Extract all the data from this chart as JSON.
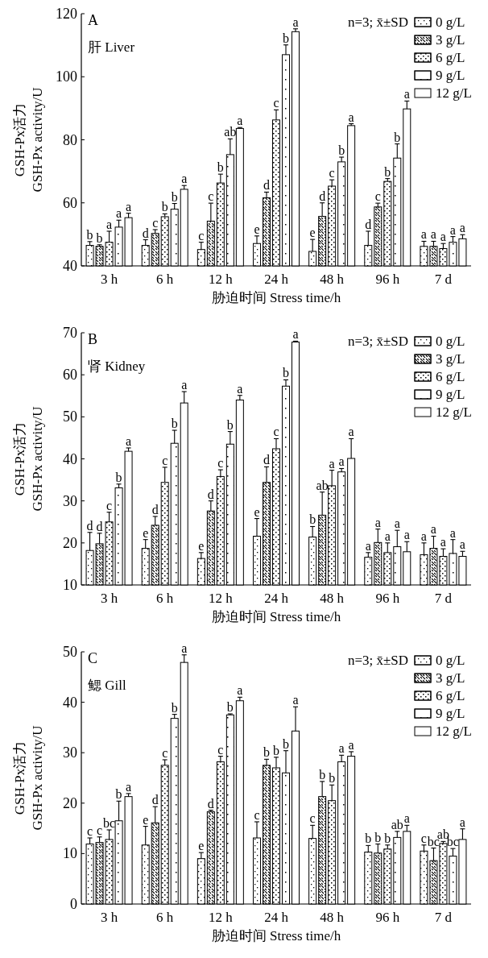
{
  "chart_data": [
    {
      "type": "bar",
      "title": "A",
      "subtitle": "肝 Liver",
      "xlabel": "胁迫时间 Stress time/h",
      "ylabel": "GSH-Px活力\nGSH-Px activity/U",
      "annotations": [
        "n=3; x̄±SD"
      ],
      "legend": "top right",
      "categories": [
        "3 h",
        "6 h",
        "12 h",
        "24 h",
        "48 h",
        "96 h",
        "7 d"
      ],
      "ylim": [
        40,
        120
      ],
      "yticks": [
        40,
        60,
        80,
        100,
        120
      ],
      "series": [
        {
          "name": "0 g/L",
          "color": "#ffffff",
          "values": [
            46.5,
            46.5,
            45.2,
            47.1,
            44.6,
            46.5,
            46.2
          ],
          "errors": [
            1.2,
            1.8,
            2.3,
            2.4,
            3.8,
            4.5,
            1.6
          ],
          "value_labels": [
            "b",
            "d",
            "c",
            "e",
            "e",
            "d",
            "a"
          ]
        },
        {
          "name": "3 g/L",
          "color": "#ffffff",
          "values": [
            46.2,
            50.3,
            54.2,
            61.6,
            55.7,
            58.7,
            46.2
          ],
          "errors": [
            0.5,
            1.2,
            5.7,
            1.8,
            4.3,
            1.2,
            1.6
          ],
          "value_labels": [
            "b",
            "c",
            "c",
            "d",
            "d",
            "c",
            "a"
          ]
        },
        {
          "name": "6 g/L",
          "color": "#ffffff",
          "values": [
            47.5,
            55.6,
            66.3,
            86.3,
            65.3,
            66.8,
            45.5
          ],
          "errors": [
            3.5,
            0.9,
            2.8,
            3.2,
            2.0,
            0.9,
            1.6
          ],
          "value_labels": [
            "a",
            "b",
            "b",
            "c",
            "c",
            "b",
            "a"
          ]
        },
        {
          "name": "9 g/L",
          "color": "#ffffff",
          "values": [
            52.3,
            58.0,
            75.3,
            107.0,
            73.0,
            74.2,
            47.5
          ],
          "errors": [
            2.2,
            1.8,
            5.0,
            3.1,
            1.5,
            4.5,
            1.8
          ],
          "value_labels": [
            "a",
            "b",
            "ab",
            "b",
            "b",
            "b",
            "a"
          ]
        },
        {
          "name": "12 g/L",
          "color": "#ffffff",
          "values": [
            55.3,
            64.3,
            83.6,
            114.3,
            84.5,
            89.8,
            48.6
          ],
          "errors": [
            1.4,
            1.2,
            0.3,
            0.9,
            0.6,
            2.5,
            1.3
          ],
          "value_labels": [
            "a",
            "a",
            "a",
            "a",
            "a",
            "a",
            "a"
          ]
        }
      ]
    },
    {
      "type": "bar",
      "title": "B",
      "subtitle": "肾 Kidney",
      "xlabel": "胁迫时间 Stress time/h",
      "ylabel": "GSH-Px活力\nGSH-Px activity/U",
      "annotations": [
        "n=3; x̄±SD"
      ],
      "legend": "top right",
      "categories": [
        "3 h",
        "6 h",
        "12 h",
        "24 h",
        "48 h",
        "96 h",
        "7 d"
      ],
      "ylim": [
        10,
        70
      ],
      "yticks": [
        10,
        20,
        30,
        40,
        50,
        60,
        70
      ],
      "series": [
        {
          "name": "0 g/L",
          "color": "#ffffff",
          "values": [
            18.2,
            18.7,
            16.3,
            21.6,
            21.4,
            16.6,
            17.2
          ],
          "errors": [
            4.3,
            2.1,
            1.4,
            4.2,
            2.5,
            1.1,
            2.8
          ],
          "value_labels": [
            "d",
            "e",
            "e",
            "e",
            "b",
            "a",
            "a"
          ]
        },
        {
          "name": "3 g/L",
          "color": "#ffffff",
          "values": [
            19.8,
            24.2,
            27.6,
            34.4,
            26.6,
            20.1,
            18.7
          ],
          "errors": [
            2.5,
            2.1,
            2.4,
            3.7,
            5.5,
            3.2,
            2.9
          ],
          "value_labels": [
            "d",
            "d",
            "d",
            "d",
            "ab",
            "a",
            "a"
          ]
        },
        {
          "name": "6 g/L",
          "color": "#ffffff",
          "values": [
            25.0,
            34.4,
            35.8,
            42.4,
            33.6,
            17.7,
            16.8
          ],
          "errors": [
            2.3,
            3.6,
            1.6,
            2.4,
            3.7,
            2.3,
            1.8
          ],
          "value_labels": [
            "c",
            "c",
            "c",
            "c",
            "a",
            "a",
            "a"
          ]
        },
        {
          "name": "9 g/L",
          "color": "#ffffff",
          "values": [
            33.1,
            43.7,
            43.5,
            57.3,
            36.9,
            19.1,
            17.5
          ],
          "errors": [
            0.9,
            3.1,
            3.0,
            1.5,
            0.8,
            3.9,
            3.3
          ],
          "value_labels": [
            "b",
            "b",
            "b",
            "b",
            "a",
            "a",
            "a"
          ]
        },
        {
          "name": "12 g/L",
          "color": "#ffffff",
          "values": [
            41.8,
            53.3,
            54.0,
            67.8,
            40.1,
            17.9,
            16.8
          ],
          "errors": [
            0.8,
            2.7,
            1.1,
            0.2,
            4.7,
            2.4,
            1.2
          ],
          "value_labels": [
            "a",
            "a",
            "a",
            "a",
            "a",
            "a",
            "a"
          ]
        }
      ]
    },
    {
      "type": "bar",
      "title": "C",
      "subtitle": "鳃 Gill",
      "xlabel": "胁迫时间 Stress time/h",
      "ylabel": "GSH-Px活力\nGSH-Px activity/U",
      "annotations": [
        "n=3; x̄±SD"
      ],
      "legend": "top right",
      "categories": [
        "3 h",
        "6 h",
        "12 h",
        "24 h",
        "48 h",
        "96 h",
        "7 d"
      ],
      "ylim": [
        0,
        50
      ],
      "yticks": [
        0,
        10,
        20,
        30,
        40,
        50
      ],
      "series": [
        {
          "name": "0 g/L",
          "color": "#ffffff",
          "values": [
            11.9,
            11.7,
            9.0,
            13.1,
            13.0,
            10.3,
            10.5
          ],
          "errors": [
            1.2,
            3.7,
            1.2,
            3.2,
            2.6,
            1.3,
            1.2
          ],
          "value_labels": [
            "c",
            "e",
            "e",
            "c",
            "c",
            "b",
            "c"
          ]
        },
        {
          "name": "3 g/L",
          "color": "#ffffff",
          "values": [
            12.2,
            16.1,
            18.3,
            27.5,
            21.3,
            10.1,
            8.6
          ],
          "errors": [
            1.1,
            3.2,
            0.3,
            1.2,
            3.0,
            1.8,
            2.5
          ],
          "value_labels": [
            "c",
            "d",
            "d",
            "b",
            "b",
            "b",
            "bc"
          ]
        },
        {
          "name": "6 g/L",
          "color": "#ffffff",
          "values": [
            12.8,
            27.5,
            28.2,
            27.0,
            20.5,
            10.9,
            12.0
          ],
          "errors": [
            1.9,
            1.1,
            1.1,
            2.1,
            3.1,
            0.8,
            0.4
          ],
          "value_labels": [
            "bc",
            "c",
            "c",
            "b",
            "b",
            "b",
            "ab"
          ]
        },
        {
          "name": "9 g/L",
          "color": "#ffffff",
          "values": [
            16.5,
            36.8,
            37.5,
            26.0,
            28.2,
            13.2,
            9.5
          ],
          "errors": [
            3.9,
            0.8,
            0.2,
            4.4,
            1.3,
            1.2,
            1.5
          ],
          "value_labels": [
            "b",
            "b",
            "b",
            "b",
            "a",
            "ab",
            "bc"
          ]
        },
        {
          "name": "12 g/L",
          "color": "#ffffff",
          "values": [
            21.3,
            47.9,
            40.3,
            34.3,
            29.3,
            14.4,
            12.8
          ],
          "errors": [
            0.6,
            1.5,
            0.7,
            4.8,
            0.9,
            1.2,
            2.1
          ],
          "value_labels": [
            "a",
            "a",
            "a",
            "a",
            "a",
            "a",
            "a"
          ]
        }
      ]
    }
  ]
}
